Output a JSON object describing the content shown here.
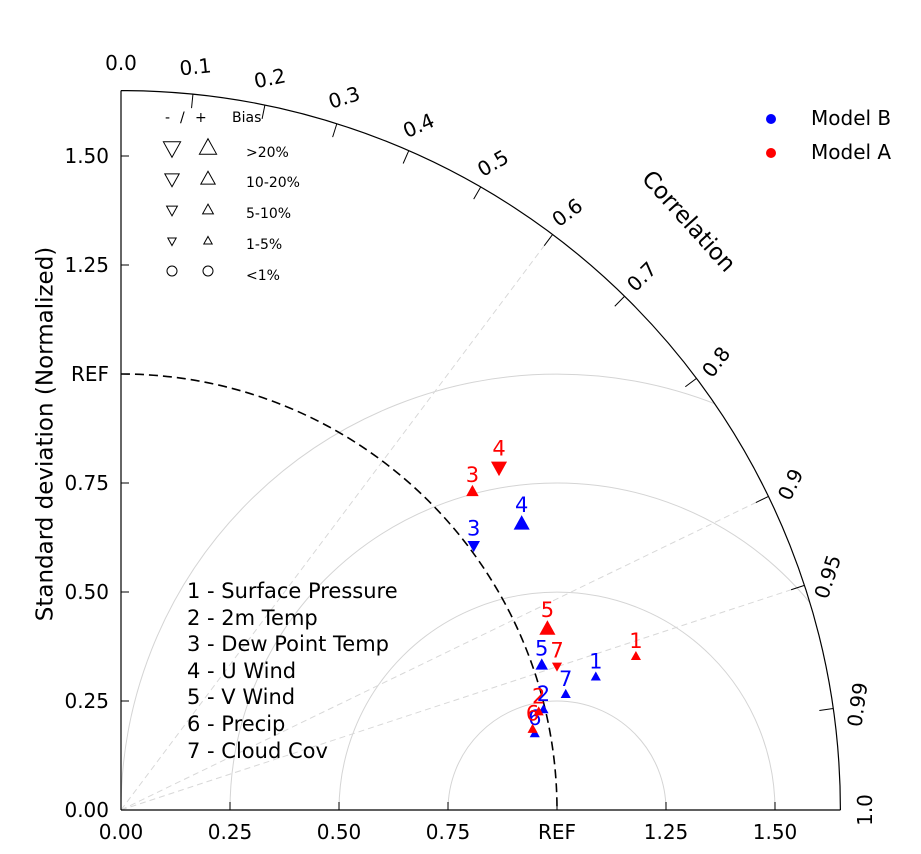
{
  "chart_data": {
    "type": "scatter",
    "chart_kind": "taylor-diagram",
    "xlabel": "",
    "ylabel": "Standard deviation (Normalized)",
    "arc_label": "Correlation",
    "ref_label": "REF",
    "ref_value": 1.0,
    "std_range": [
      0,
      1.65
    ],
    "std_ticks": [
      {
        "value": 0.0,
        "label": "0.00"
      },
      {
        "value": 0.25,
        "label": "0.25"
      },
      {
        "value": 0.5,
        "label": "0.50"
      },
      {
        "value": 0.75,
        "label": "0.75"
      },
      {
        "value": 1.0,
        "label": "REF"
      },
      {
        "value": 1.25,
        "label": "1.25"
      },
      {
        "value": 1.5,
        "label": "1.50"
      }
    ],
    "corr_ticks": [
      {
        "value": 0.0,
        "label": "0.0"
      },
      {
        "value": 0.1,
        "label": "0.1"
      },
      {
        "value": 0.2,
        "label": "0.2"
      },
      {
        "value": 0.3,
        "label": "0.3"
      },
      {
        "value": 0.4,
        "label": "0.4"
      },
      {
        "value": 0.5,
        "label": "0.5"
      },
      {
        "value": 0.6,
        "label": "0.6"
      },
      {
        "value": 0.7,
        "label": "0.7"
      },
      {
        "value": 0.8,
        "label": "0.8"
      },
      {
        "value": 0.9,
        "label": "0.9"
      },
      {
        "value": 0.95,
        "label": "0.95"
      },
      {
        "value": 0.99,
        "label": "0.99"
      },
      {
        "value": 1.0,
        "label": "1.0"
      }
    ],
    "corr_gridlines": [
      0.6,
      0.9,
      0.95
    ],
    "rms_contours": [
      0.25,
      0.5,
      0.75,
      1.0
    ],
    "legend": {
      "placement": "top-right",
      "entries": [
        {
          "name": "Model B",
          "color": "#0000ff"
        },
        {
          "name": "Model A",
          "color": "#ff0000"
        }
      ]
    },
    "bias_key": {
      "header_minus": "-",
      "header_slash": "/",
      "header_plus": "+",
      "header_title": "Bias",
      "rows": [
        {
          "label": ">20%",
          "level": 5
        },
        {
          "label": "10-20%",
          "level": 4
        },
        {
          "label": "5-10%",
          "level": 3
        },
        {
          "label": "1-5%",
          "level": 2
        },
        {
          "label": "<1%",
          "level": 1
        }
      ]
    },
    "variables": [
      "1 - Surface Pressure",
      "2 - 2m Temp",
      "3 - Dew Point Temp",
      "4 - U Wind",
      "5 - V Wind",
      "6 - Precip",
      "7 - Cloud Cov"
    ],
    "series": [
      {
        "name": "Model B",
        "color": "#0000ff",
        "points": [
          {
            "label": "1",
            "x": 1.089,
            "y": 0.305,
            "bias": "+",
            "level": 2
          },
          {
            "label": "2",
            "x": 0.969,
            "y": 0.23,
            "bias": "+",
            "level": 2
          },
          {
            "label": "3",
            "x": 0.809,
            "y": 0.607,
            "bias": "-",
            "level": 3
          },
          {
            "label": "4",
            "x": 0.919,
            "y": 0.656,
            "bias": "+",
            "level": 4
          },
          {
            "label": "5",
            "x": 0.965,
            "y": 0.332,
            "bias": "+",
            "level": 3
          },
          {
            "label": "6",
            "x": 0.949,
            "y": 0.175,
            "bias": "+",
            "level": 2
          },
          {
            "label": "7",
            "x": 1.02,
            "y": 0.265,
            "bias": "+",
            "level": 2
          }
        ]
      },
      {
        "name": "Model A",
        "color": "#ff0000",
        "points": [
          {
            "label": "1",
            "x": 1.181,
            "y": 0.352,
            "bias": "+",
            "level": 2
          },
          {
            "label": "2",
            "x": 0.958,
            "y": 0.225,
            "bias": "+",
            "level": 2
          },
          {
            "label": "3",
            "x": 0.806,
            "y": 0.73,
            "bias": "+",
            "level": 3
          },
          {
            "label": "4",
            "x": 0.867,
            "y": 0.786,
            "bias": "-",
            "level": 4
          },
          {
            "label": "5",
            "x": 0.978,
            "y": 0.415,
            "bias": "+",
            "level": 4
          },
          {
            "label": "6",
            "x": 0.944,
            "y": 0.185,
            "bias": "+",
            "level": 2
          },
          {
            "label": "7",
            "x": 1.0,
            "y": 0.33,
            "bias": "-",
            "level": 2
          }
        ]
      }
    ]
  }
}
